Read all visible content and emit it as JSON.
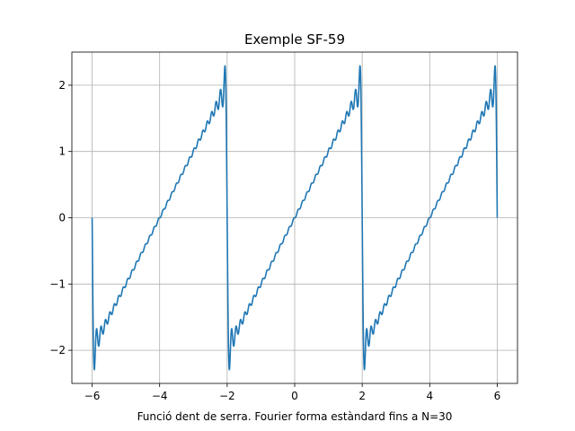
{
  "chart_data": {
    "type": "line",
    "title": "Exemple SF-59",
    "xlabel": "Funció dent de serra. Fourier forma estàndard fins a N=30",
    "ylabel": "",
    "xlim": [
      -6.6,
      6.6
    ],
    "ylim": [
      -2.5,
      2.5
    ],
    "x_ticks": [
      -6,
      -4,
      -2,
      0,
      2,
      4,
      6
    ],
    "x_tick_labels": [
      "−6",
      "−4",
      "−2",
      "0",
      "2",
      "4",
      "6"
    ],
    "y_ticks": [
      -2,
      -1,
      0,
      1,
      2
    ],
    "y_tick_labels": [
      "−2",
      "−1",
      "0",
      "1",
      "2"
    ],
    "grid": true,
    "series": [
      {
        "color": "#1f77b4",
        "function": "fourier-sawtooth",
        "period": 4,
        "amplitude": 2,
        "harmonics": 30,
        "x_range": [
          -6,
          6
        ]
      }
    ]
  }
}
